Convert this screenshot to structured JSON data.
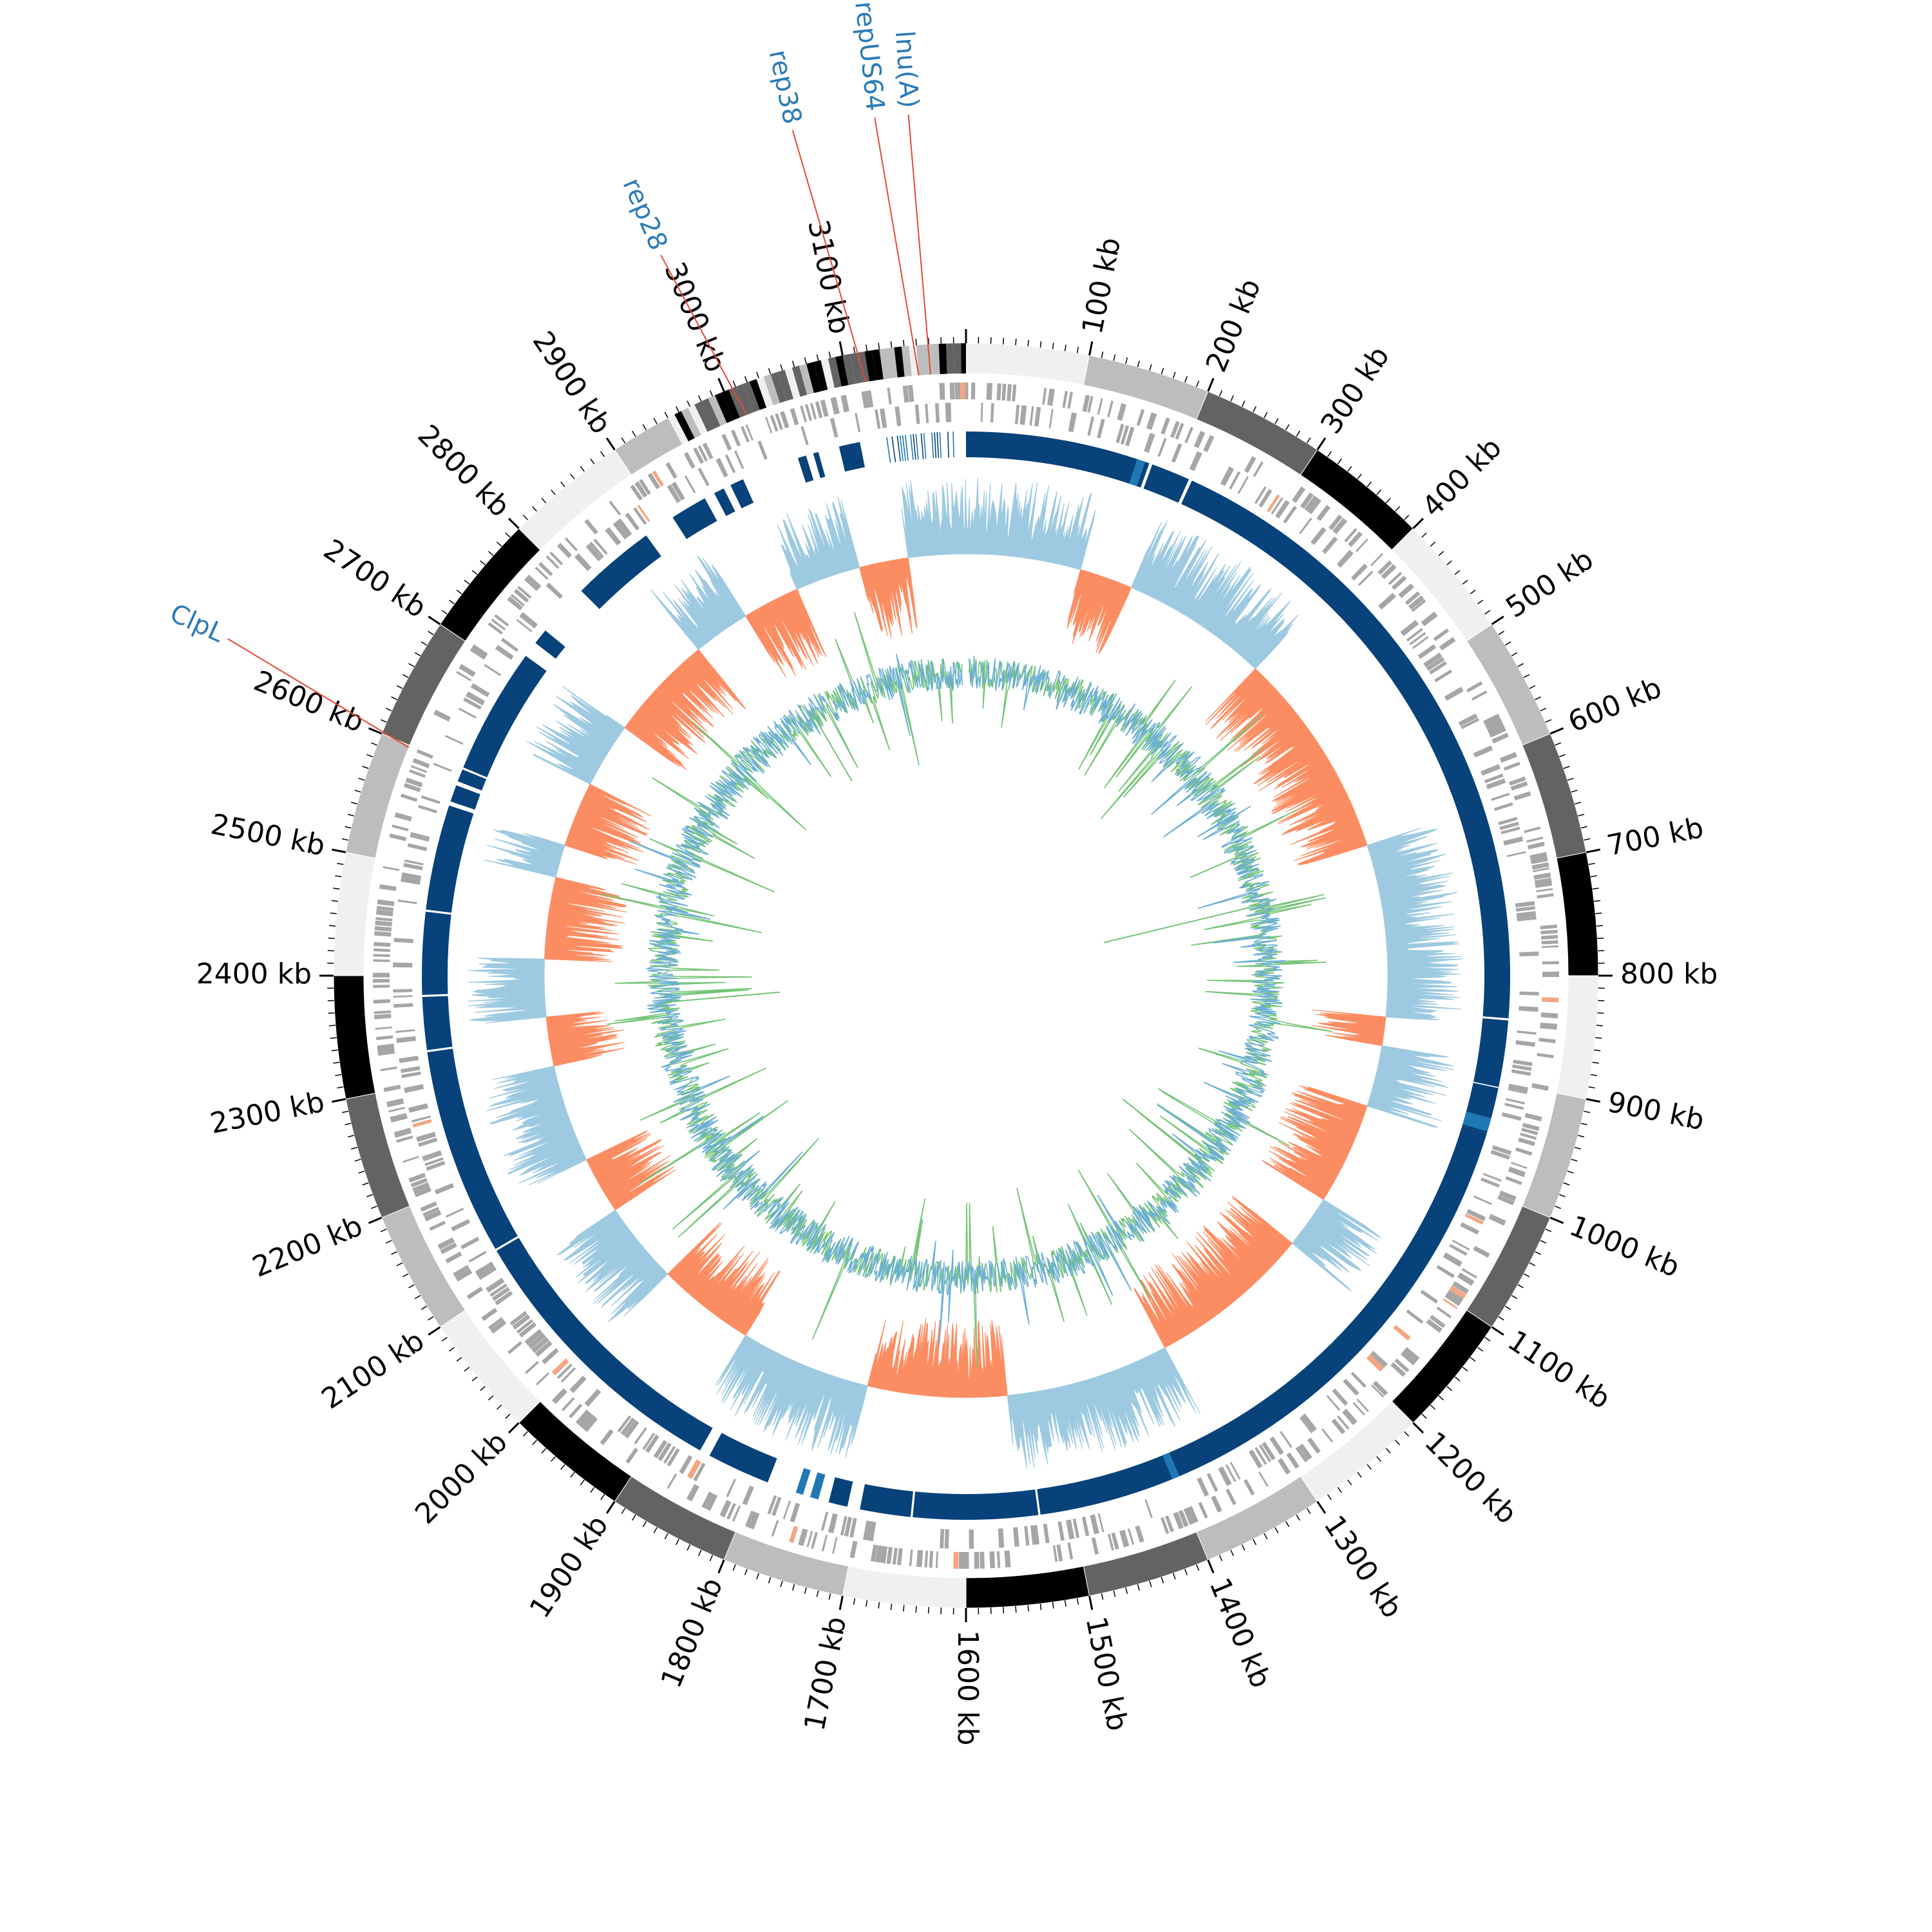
{
  "genome": {
    "length_kb": 3200,
    "tick_labels": [
      "100 kb",
      "200 kb",
      "300 kb",
      "400 kb",
      "500 kb",
      "600 kb",
      "700 kb",
      "800 kb",
      "900 kb",
      "1000 kb",
      "1100 kb",
      "1200 kb",
      "1300 kb",
      "1400 kb",
      "1500 kb",
      "1600 kb",
      "1700 kb",
      "1800 kb",
      "1900 kb",
      "2000 kb",
      "2100 kb",
      "2200 kb",
      "2300 kb",
      "2400 kb",
      "2500 kb",
      "2600 kb",
      "2700 kb",
      "2800 kb",
      "2900 kb",
      "3000 kb",
      "3100 kb"
    ]
  },
  "gene_labels": [
    {
      "text": "lnu(A)",
      "position_kb": 3170
    },
    {
      "text": "repUS64",
      "position_kb": 3160
    },
    {
      "text": "rep38",
      "position_kb": 3115
    },
    {
      "text": "rep28",
      "position_kb": 3010
    },
    {
      "text": "ClpL",
      "position_kb": 2598
    }
  ],
  "colors": {
    "ideogram_shades": [
      "#f0f0f0",
      "#bdbdbd",
      "#636363",
      "#000000"
    ],
    "gene_track": "#a6a6a6",
    "gene_highlight": "#f4a582",
    "blast_track": "#08427a",
    "blast_variant": "#1f78b4",
    "gc_skew_positive": "#9ecae1",
    "gc_skew_negative": "#fc8d62",
    "gc_content_blue": "#6baed6",
    "gc_content_green": "#74c476",
    "label_line": "#e34a33",
    "label_text": "#2c7bb6"
  }
}
